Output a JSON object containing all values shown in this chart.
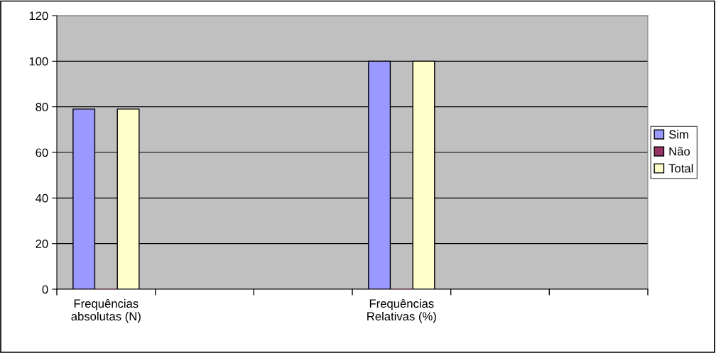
{
  "chart_data": {
    "type": "bar",
    "categories": [
      "Frequências\nabsolutas (N)",
      null,
      null,
      "Frequências\nRelativas (%)",
      null,
      null
    ],
    "series": [
      {
        "name": "Sim",
        "color": "#9999ff",
        "values": [
          79,
          null,
          null,
          100,
          null,
          null
        ]
      },
      {
        "name": "Não",
        "color": "#993366",
        "values": [
          0,
          null,
          null,
          0,
          null,
          null
        ]
      },
      {
        "name": "Total",
        "color": "#ffffcc",
        "values": [
          79,
          null,
          null,
          100,
          null,
          null
        ]
      }
    ],
    "ylim": [
      0,
      120
    ],
    "yticks": [
      0,
      20,
      40,
      60,
      80,
      100,
      120
    ],
    "grid": "y",
    "legend": "right"
  }
}
